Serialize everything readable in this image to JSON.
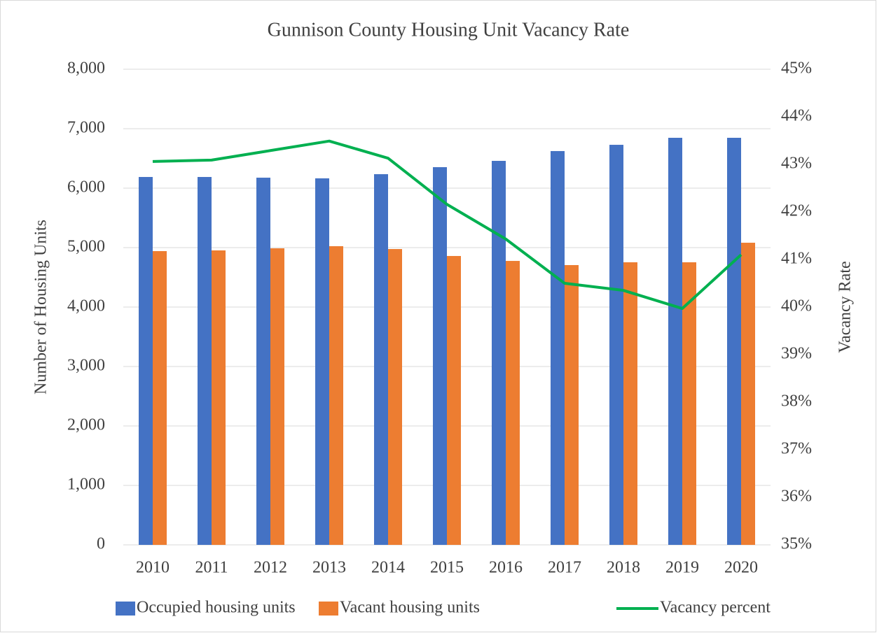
{
  "chart_data": {
    "type": "bar",
    "title": "Gunnison County Housing Unit Vacancy Rate",
    "y_label": "Number of Housing Units",
    "y2_label": "Vacancy Rate",
    "categories": [
      "2010",
      "2011",
      "2012",
      "2013",
      "2014",
      "2015",
      "2016",
      "2017",
      "2018",
      "2019",
      "2020"
    ],
    "series": [
      {
        "name": "Occupied housing units",
        "color": "#4472c4",
        "type": "bar",
        "values": [
          6188,
          6188,
          6176,
          6165,
          6235,
          6353,
          6459,
          6624,
          6729,
          6847,
          6847
        ]
      },
      {
        "name": "Vacant housing units",
        "color": "#ed7d31",
        "type": "bar",
        "values": [
          4941,
          4953,
          4988,
          5024,
          4976,
          4859,
          4776,
          4706,
          4753,
          4753,
          5082
        ]
      },
      {
        "name": "Vacancy percent",
        "color": "#00b050",
        "type": "line",
        "axis": "y2",
        "values": [
          43.06,
          43.09,
          43.29,
          43.49,
          43.13,
          42.16,
          41.43,
          40.5,
          40.35,
          39.97,
          41.1
        ]
      }
    ],
    "ylim": [
      0,
      8000
    ],
    "yticks": [
      0,
      {
        "value": 1000,
        "label": "1,000"
      },
      {
        "value": 2000,
        "label": "2,000"
      },
      {
        "value": 3000,
        "label": "3,000"
      },
      {
        "value": 4000,
        "label": "4,000"
      },
      {
        "value": 5000,
        "label": "5,000"
      },
      {
        "value": 6000,
        "label": "6,000"
      },
      {
        "value": 7000,
        "label": "7,000"
      },
      {
        "value": 8000,
        "label": "8,000"
      }
    ],
    "y2lim": [
      35,
      45
    ],
    "y2ticks": [
      {
        "value": 35,
        "label": "35%"
      },
      {
        "value": 36,
        "label": "36%"
      },
      {
        "value": 37,
        "label": "37%"
      },
      {
        "value": 38,
        "label": "38%"
      },
      {
        "value": 39,
        "label": "39%"
      },
      {
        "value": 40,
        "label": "40%"
      },
      {
        "value": 41,
        "label": "41%"
      },
      {
        "value": 42,
        "label": "42%"
      },
      {
        "value": 43,
        "label": "43%"
      },
      {
        "value": 44,
        "label": "44%"
      },
      {
        "value": 45,
        "label": "45%"
      }
    ],
    "grid": true,
    "legend": "bottom"
  }
}
